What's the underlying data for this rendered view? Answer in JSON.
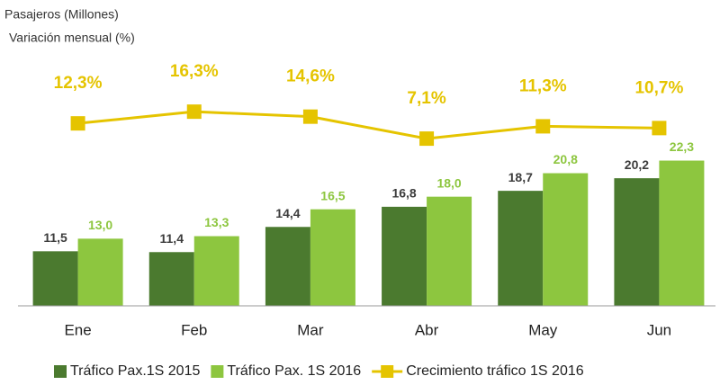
{
  "chart_data": {
    "type": "bar_line",
    "title": "Pasajeros (Millones)",
    "subtitle": "Variación mensual (%)",
    "categories": [
      "Ene",
      "Feb",
      "Mar",
      "Abr",
      "May",
      "Jun"
    ],
    "ylim": [
      5,
      35
    ],
    "y2lim": [
      -50,
      36
    ],
    "series": [
      {
        "name": "Tráfico Pax.1S 2015",
        "type": "bar",
        "color": "#4b7a2f",
        "label_color": "#3c3c3c",
        "values": [
          11.5,
          11.4,
          14.4,
          16.8,
          18.7,
          20.2
        ],
        "value_labels": [
          "11,5",
          "11,4",
          "14,4",
          "16,8",
          "18,7",
          "20,2"
        ]
      },
      {
        "name": "Tráfico Pax. 1S 2016",
        "type": "bar",
        "color": "#8dc63f",
        "label_color": "#8dc63f",
        "values": [
          13.0,
          13.3,
          16.5,
          18.0,
          20.8,
          22.3
        ],
        "value_labels": [
          "13,0",
          "13,3",
          "16,5",
          "18,0",
          "20,8",
          "22,3"
        ]
      },
      {
        "name": "Crecimiento tráfico 1S 2016",
        "type": "line",
        "axis": "y2",
        "color": "#e5c400",
        "label_color": "#e5c400",
        "values": [
          12.3,
          16.3,
          14.6,
          7.1,
          11.3,
          10.7
        ],
        "value_labels": [
          "12,3%",
          "16,3%",
          "14,6%",
          "7,1%",
          "11,3%",
          "10,7%"
        ]
      }
    ]
  }
}
